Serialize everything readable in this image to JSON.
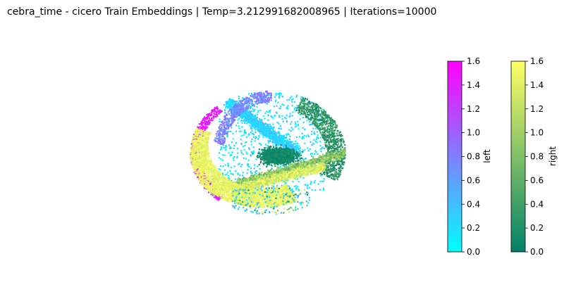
{
  "chart_data": {
    "type": "scatter",
    "title": "cebra_time - cicero Train Embeddings | Temp=3.212991682008965 | Iterations=10000",
    "projection": "3d",
    "axes_visible": false,
    "grid": false,
    "series": [
      {
        "name": "left",
        "colormap": "cool",
        "color_stops": [
          "#00ffff",
          "#ff00ff"
        ],
        "clim": [
          0.0,
          1.6
        ]
      },
      {
        "name": "right",
        "colormap": "summer",
        "color_stops": [
          "#008066",
          "#ffff66"
        ],
        "clim": [
          0.0,
          1.6
        ]
      }
    ],
    "colorbars": [
      {
        "label": "left",
        "range": [
          0.0,
          1.6
        ],
        "ticks": [
          "0.0",
          "0.2",
          "0.4",
          "0.6",
          "0.8",
          "1.0",
          "1.2",
          "1.4",
          "1.6"
        ]
      },
      {
        "label": "right",
        "range": [
          0.0,
          1.6
        ],
        "ticks": [
          "0.0",
          "0.2",
          "0.4",
          "0.6",
          "0.8",
          "1.0",
          "1.2",
          "1.4",
          "1.6"
        ]
      }
    ]
  }
}
